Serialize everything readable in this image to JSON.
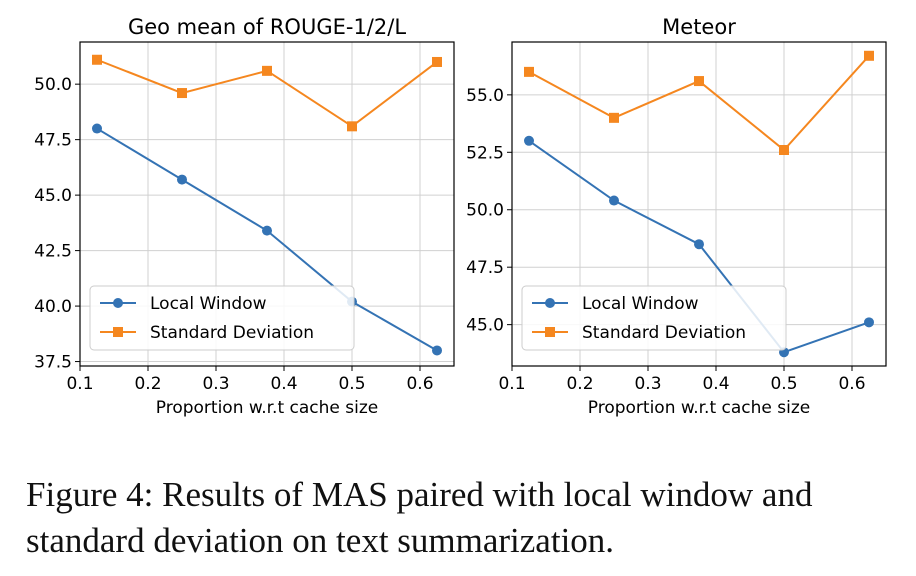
{
  "caption": "Figure 4: Results of MAS paired with local window and standard deviation on text summarization.",
  "colors": {
    "local": "#3473b4",
    "std": "#f5871f",
    "grid": "#d0d0d0"
  },
  "chart_data": [
    {
      "type": "line",
      "title": "Geo mean of ROUGE-1/2/L",
      "xlabel": "Proportion w.r.t cache size",
      "ylabel": "",
      "x": [
        0.125,
        0.25,
        0.375,
        0.5,
        0.625
      ],
      "xlim": [
        0.1,
        0.65
      ],
      "ylim": [
        37.3,
        51.9
      ],
      "xticks": [
        0.1,
        0.2,
        0.3,
        0.4,
        0.5,
        0.6
      ],
      "yticks": [
        37.5,
        40.0,
        42.5,
        45.0,
        47.5,
        50.0
      ],
      "grid": true,
      "legend": "lower-left",
      "series": [
        {
          "name": "Local Window",
          "marker": "circle",
          "values": [
            48.0,
            45.7,
            43.4,
            40.2,
            38.0
          ]
        },
        {
          "name": "Standard Deviation",
          "marker": "square",
          "values": [
            51.1,
            49.6,
            50.6,
            48.1,
            51.0
          ]
        }
      ]
    },
    {
      "type": "line",
      "title": "Meteor",
      "xlabel": "Proportion w.r.t cache size",
      "ylabel": "",
      "x": [
        0.125,
        0.25,
        0.375,
        0.5,
        0.625
      ],
      "xlim": [
        0.1,
        0.65
      ],
      "ylim": [
        43.2,
        57.3
      ],
      "xticks": [
        0.1,
        0.2,
        0.3,
        0.4,
        0.5,
        0.6
      ],
      "yticks": [
        45.0,
        47.5,
        50.0,
        52.5,
        55.0
      ],
      "grid": true,
      "legend": "lower-left",
      "series": [
        {
          "name": "Local Window",
          "marker": "circle",
          "values": [
            53.0,
            50.4,
            48.5,
            43.8,
            45.1
          ]
        },
        {
          "name": "Standard Deviation",
          "marker": "square",
          "values": [
            56.0,
            54.0,
            55.6,
            52.6,
            56.7
          ]
        }
      ]
    }
  ]
}
